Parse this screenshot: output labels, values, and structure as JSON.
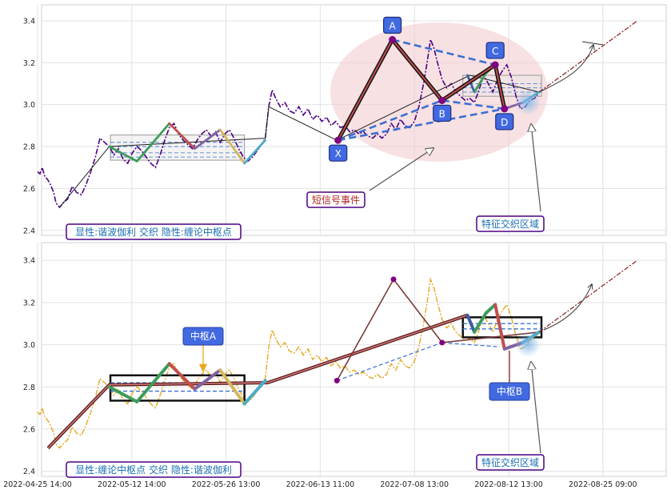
{
  "chart_data": [
    {
      "type": "line",
      "panel": "top",
      "ylim": [
        2.38,
        3.48
      ],
      "yticks": [
        "2.4",
        "2.6",
        "2.8",
        "3.0",
        "3.2",
        "3.4"
      ],
      "grid": true,
      "price_line_color": "#4b0082",
      "price": [
        [
          0.0,
          2.68
        ],
        [
          0.1,
          2.67
        ],
        [
          0.2,
          2.7
        ],
        [
          0.3,
          2.66
        ],
        [
          0.45,
          2.64
        ],
        [
          0.55,
          2.62
        ],
        [
          0.7,
          2.58
        ],
        [
          0.8,
          2.53
        ],
        [
          0.95,
          2.51
        ],
        [
          1.1,
          2.53
        ],
        [
          1.3,
          2.55
        ],
        [
          1.5,
          2.61
        ],
        [
          1.7,
          2.58
        ],
        [
          1.9,
          2.57
        ],
        [
          2.1,
          2.62
        ],
        [
          2.3,
          2.68
        ],
        [
          2.5,
          2.75
        ],
        [
          2.7,
          2.84
        ],
        [
          2.9,
          2.82
        ],
        [
          3.1,
          2.8
        ],
        [
          3.3,
          2.76
        ],
        [
          3.5,
          2.79
        ],
        [
          3.7,
          2.74
        ],
        [
          3.9,
          2.72
        ],
        [
          4.1,
          2.77
        ],
        [
          4.3,
          2.8
        ],
        [
          4.5,
          2.78
        ],
        [
          4.7,
          2.75
        ],
        [
          4.9,
          2.72
        ],
        [
          5.1,
          2.7
        ],
        [
          5.3,
          2.76
        ],
        [
          5.5,
          2.83
        ],
        [
          5.7,
          2.89
        ],
        [
          5.9,
          2.91
        ],
        [
          6.1,
          2.86
        ],
        [
          6.3,
          2.83
        ],
        [
          6.5,
          2.81
        ],
        [
          6.7,
          2.79
        ],
        [
          6.9,
          2.83
        ],
        [
          7.1,
          2.86
        ],
        [
          7.3,
          2.88
        ],
        [
          7.5,
          2.85
        ],
        [
          7.7,
          2.87
        ],
        [
          7.9,
          2.82
        ],
        [
          8.1,
          2.86
        ],
        [
          8.3,
          2.88
        ],
        [
          8.5,
          2.84
        ],
        [
          8.7,
          2.79
        ],
        [
          8.9,
          2.75
        ],
        [
          9.1,
          2.73
        ],
        [
          9.3,
          2.75
        ],
        [
          9.5,
          2.78
        ],
        [
          9.7,
          2.81
        ],
        [
          9.85,
          2.84
        ],
        [
          10.0,
          2.99
        ],
        [
          10.15,
          3.07
        ],
        [
          10.3,
          3.03
        ],
        [
          10.5,
          2.99
        ],
        [
          10.7,
          3.01
        ],
        [
          10.9,
          2.97
        ],
        [
          11.1,
          2.96
        ],
        [
          11.3,
          2.99
        ],
        [
          11.5,
          2.95
        ],
        [
          11.7,
          2.98
        ],
        [
          11.9,
          2.93
        ],
        [
          12.1,
          2.95
        ],
        [
          12.3,
          2.92
        ],
        [
          12.5,
          2.94
        ],
        [
          12.7,
          2.9
        ],
        [
          12.9,
          2.92
        ],
        [
          13.1,
          2.89
        ],
        [
          13.3,
          2.9
        ],
        [
          13.5,
          2.87
        ],
        [
          13.7,
          2.88
        ],
        [
          13.9,
          2.86
        ],
        [
          14.1,
          2.87
        ],
        [
          14.3,
          2.85
        ],
        [
          14.5,
          2.84
        ],
        [
          14.7,
          2.86
        ],
        [
          14.9,
          2.84
        ],
        [
          15.1,
          2.86
        ],
        [
          15.3,
          2.91
        ],
        [
          15.5,
          2.88
        ],
        [
          15.7,
          2.93
        ],
        [
          15.9,
          2.9
        ],
        [
          16.1,
          2.89
        ],
        [
          16.3,
          2.92
        ],
        [
          16.5,
          2.99
        ],
        [
          16.7,
          3.1
        ],
        [
          16.85,
          3.2
        ],
        [
          17.0,
          3.31
        ],
        [
          17.15,
          3.27
        ],
        [
          17.3,
          3.2
        ],
        [
          17.5,
          3.12
        ],
        [
          17.7,
          3.08
        ],
        [
          17.9,
          3.1
        ],
        [
          18.1,
          3.06
        ],
        [
          18.3,
          3.04
        ],
        [
          18.5,
          3.02
        ],
        [
          18.7,
          3.03
        ],
        [
          18.9,
          3.01
        ],
        [
          19.1,
          3.07
        ],
        [
          19.3,
          3.14
        ],
        [
          19.5,
          3.1
        ],
        [
          19.7,
          3.06
        ],
        [
          19.9,
          3.12
        ],
        [
          20.1,
          3.16
        ],
        [
          20.3,
          3.19
        ],
        [
          20.5,
          3.13
        ],
        [
          20.7,
          3.04
        ],
        [
          20.9,
          2.98
        ],
        [
          21.1,
          2.99
        ],
        [
          21.3,
          3.02
        ],
        [
          21.5,
          3.03
        ],
        [
          21.7,
          3.06
        ]
      ],
      "bi_path": [
        [
          0.95,
          2.51
        ],
        [
          3.1,
          2.8
        ],
        [
          9.85,
          2.84
        ],
        [
          10.0,
          2.99
        ],
        [
          12.95,
          2.83
        ],
        [
          18.7,
          3.14
        ],
        [
          21.7,
          3.06
        ]
      ],
      "harmonic_legs": [
        [
          13.0,
          2.83
        ],
        [
          15.35,
          3.31
        ],
        [
          17.5,
          3.02
        ],
        [
          19.8,
          3.19
        ],
        [
          20.2,
          2.98
        ]
      ],
      "harmonic_points": [
        {
          "label": "X",
          "x": 13.0,
          "y": 2.83
        },
        {
          "label": "A",
          "x": 15.35,
          "y": 3.31
        },
        {
          "label": "B",
          "x": 17.5,
          "y": 3.02
        },
        {
          "label": "C",
          "x": 19.8,
          "y": 3.19
        },
        {
          "label": "D",
          "x": 20.2,
          "y": 2.98
        }
      ],
      "center_a": {
        "x0": 3.15,
        "x1": 8.95,
        "y0": 2.735,
        "y1": 2.855,
        "inner": [
          2.8,
          2.82,
          2.77,
          2.75
        ]
      },
      "center_b": {
        "x0": 18.4,
        "x1": 21.8,
        "y0": 3.04,
        "y1": 3.14,
        "inner": [
          3.1,
          3.06,
          3.08
        ]
      },
      "projection": [
        [
          21.7,
          3.06
        ],
        [
          25.95,
          3.4
        ]
      ],
      "annotations": {
        "signal": "短信号事件",
        "feature": "特征交织区域",
        "legend": "显性:谐波伽利 交织 隐性:缠论中枢点"
      }
    },
    {
      "type": "line",
      "panel": "bottom",
      "ylim": [
        2.38,
        3.48
      ],
      "yticks": [
        "2.4",
        "2.6",
        "2.8",
        "3.0",
        "3.2",
        "3.4"
      ],
      "grid": true,
      "price_line_color": "#e6a820",
      "price": "same as top panel",
      "bi_path": [
        [
          0.45,
          2.51
        ],
        [
          3.1,
          2.81
        ],
        [
          9.95,
          2.82
        ],
        [
          18.6,
          3.14
        ]
      ],
      "stroke_path": [
        [
          12.95,
          2.83
        ],
        [
          15.4,
          3.31
        ],
        [
          17.5,
          3.01
        ],
        [
          21.7,
          3.06
        ]
      ],
      "dashed_links": [
        [
          [
            12.95,
            2.83
          ],
          [
            17.5,
            3.01
          ]
        ],
        [
          [
            17.5,
            3.01
          ],
          [
            20.0,
            2.99
          ]
        ]
      ],
      "center_a": {
        "x0": 3.15,
        "x1": 8.95,
        "y0": 2.735,
        "y1": 2.855,
        "inner": [
          2.82,
          2.78
        ]
      },
      "center_b": {
        "x0": 18.4,
        "x1": 21.8,
        "y0": 3.035,
        "y1": 3.13,
        "inner": [
          3.1,
          3.075
        ]
      },
      "projection": [
        [
          21.7,
          3.06
        ],
        [
          25.95,
          3.4
        ]
      ],
      "annotations": {
        "center_a_label": "中枢A",
        "center_b_label": "中枢B",
        "feature": "特征交织区域",
        "legend": "显性:缠论中枢点 交织 隐性:谐波伽利"
      },
      "x_tick_labels": [
        "2022-04-25 14:00",
        "2022-05-12 14:00",
        "2022-05-26 13:00",
        "2022-06-13 11:00",
        "2022-07-08 13:00",
        "2022-08-12 13:00",
        "2022-08-25 09:00"
      ]
    }
  ]
}
